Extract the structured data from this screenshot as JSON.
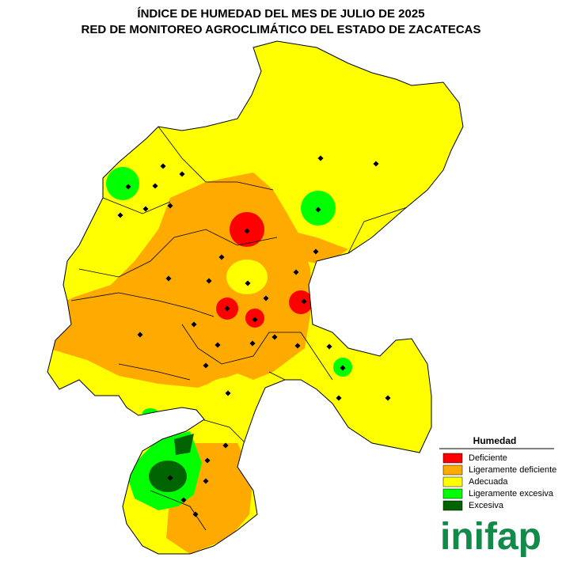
{
  "header": {
    "title_lines": [
      "ÍNDICE DE HUMEDAD DEL MES DE JULIO DE 2025",
      "RED DE MONITOREO AGROCLIMÁTICO DEL ESTADO DE ZACATECAS"
    ]
  },
  "legend": {
    "title": "Humedad",
    "items": [
      {
        "label": "Deficiente",
        "color": "#ff0000"
      },
      {
        "label": "Ligeramente deficiente",
        "color": "#ffaa00"
      },
      {
        "label": "Adecuada",
        "color": "#ffff00"
      },
      {
        "label": "Ligeramente excesiva",
        "color": "#00ff00"
      },
      {
        "label": "Excesiva",
        "color": "#006400"
      }
    ]
  },
  "logo": {
    "text": "inifap"
  }
}
